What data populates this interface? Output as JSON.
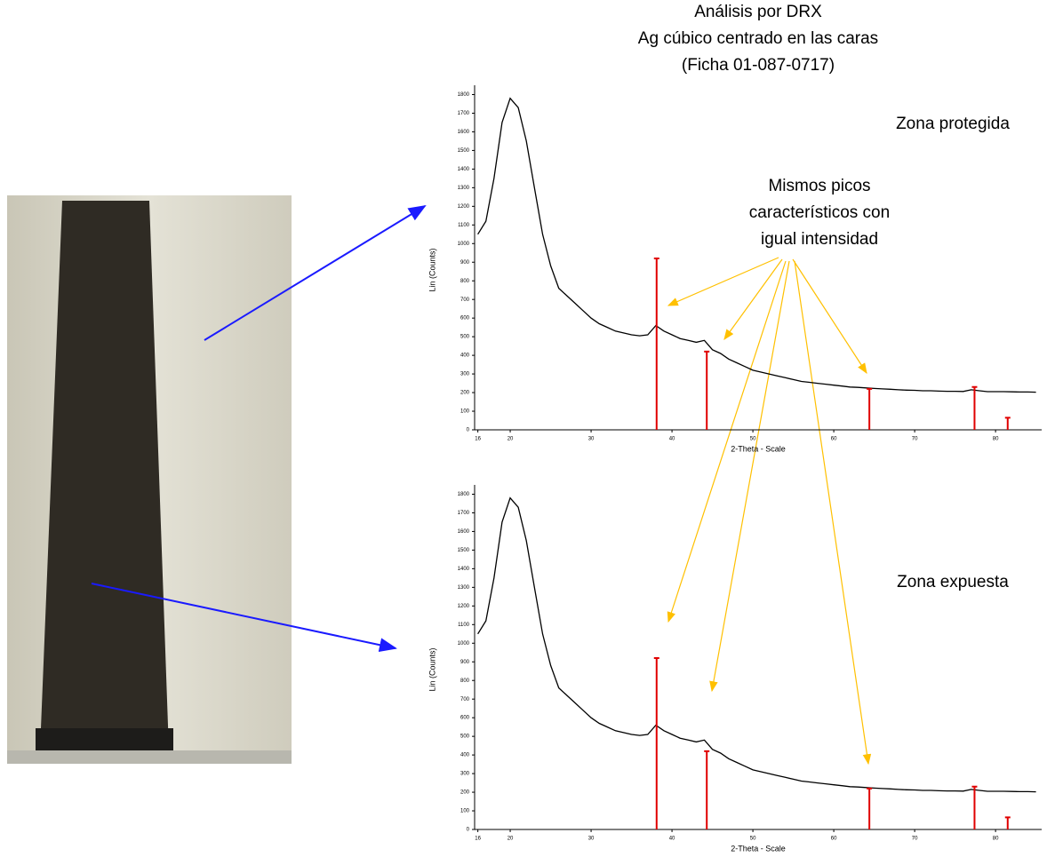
{
  "title": [
    "Análisis por DRX",
    "Ag cúbico centrado en las caras",
    "(Ficha 01-087-0717)"
  ],
  "annotation": [
    "Mismos picos",
    "característicos con",
    "igual intensidad"
  ],
  "chart_data": [
    {
      "type": "line",
      "label": "Zona protegida",
      "x_label": "2-Theta - Scale",
      "y_label": "Lin (Counts)",
      "xlim": [
        15.6,
        85.7
      ],
      "xticks": [
        16,
        20,
        30,
        40,
        50,
        60,
        70,
        80
      ],
      "ylim": [
        0,
        1850
      ],
      "yticks": [
        0,
        100,
        200,
        300,
        400,
        500,
        600,
        700,
        800,
        900,
        1000,
        1100,
        1200,
        1300,
        1400,
        1500,
        1600,
        1700,
        1800
      ],
      "x": [
        16,
        17,
        18,
        19,
        20,
        21,
        22,
        23,
        24,
        25,
        26,
        27,
        28,
        29,
        30,
        31,
        32,
        33,
        34,
        35,
        36,
        37,
        38,
        39,
        40,
        41,
        42,
        43,
        44,
        45,
        46,
        47,
        48,
        49,
        50,
        51,
        52,
        53,
        54,
        55,
        56,
        57,
        58,
        59,
        60,
        61,
        62,
        63,
        64,
        65,
        66,
        67,
        68,
        69,
        70,
        71,
        72,
        73,
        74,
        75,
        76,
        77,
        78,
        79,
        80,
        81,
        82,
        83,
        84,
        85
      ],
      "series": [
        {
          "color": "#000000",
          "values": [
            1050,
            1120,
            1350,
            1650,
            1780,
            1730,
            1550,
            1300,
            1050,
            880,
            760,
            720,
            680,
            640,
            600,
            570,
            550,
            530,
            520,
            510,
            505,
            510,
            560,
            530,
            510,
            490,
            480,
            470,
            480,
            430,
            410,
            380,
            360,
            340,
            320,
            310,
            300,
            290,
            280,
            270,
            260,
            255,
            250,
            245,
            240,
            235,
            230,
            228,
            225,
            222,
            220,
            218,
            215,
            213,
            212,
            210,
            210,
            208,
            207,
            207,
            206,
            215,
            210,
            205,
            205,
            205,
            204,
            203,
            203,
            202
          ]
        }
      ],
      "reference": {
        "color": "#e00000",
        "x": [
          38.1,
          44.3,
          64.4,
          77.4,
          81.5
        ],
        "values": [
          920,
          420,
          220,
          230,
          65
        ]
      }
    },
    {
      "type": "line",
      "label": "Zona expuesta",
      "x_label": "2-Theta - Scale",
      "y_label": "Lin (Counts)",
      "xlim": [
        15.6,
        85.7
      ],
      "xticks": [
        16,
        20,
        30,
        40,
        50,
        60,
        70,
        80
      ],
      "ylim": [
        0,
        1850
      ],
      "yticks": [
        0,
        100,
        200,
        300,
        400,
        500,
        600,
        700,
        800,
        900,
        1000,
        1100,
        1200,
        1300,
        1400,
        1500,
        1600,
        1700,
        1800
      ],
      "x": [
        16,
        17,
        18,
        19,
        20,
        21,
        22,
        23,
        24,
        25,
        26,
        27,
        28,
        29,
        30,
        31,
        32,
        33,
        34,
        35,
        36,
        37,
        38,
        39,
        40,
        41,
        42,
        43,
        44,
        45,
        46,
        47,
        48,
        49,
        50,
        51,
        52,
        53,
        54,
        55,
        56,
        57,
        58,
        59,
        60,
        61,
        62,
        63,
        64,
        65,
        66,
        67,
        68,
        69,
        70,
        71,
        72,
        73,
        74,
        75,
        76,
        77,
        78,
        79,
        80,
        81,
        82,
        83,
        84,
        85
      ],
      "series": [
        {
          "color": "#000000",
          "values": [
            1050,
            1120,
            1350,
            1650,
            1780,
            1730,
            1550,
            1300,
            1050,
            880,
            760,
            720,
            680,
            640,
            600,
            570,
            550,
            530,
            520,
            510,
            505,
            510,
            560,
            530,
            510,
            490,
            480,
            470,
            480,
            430,
            410,
            380,
            360,
            340,
            320,
            310,
            300,
            290,
            280,
            270,
            260,
            255,
            250,
            245,
            240,
            235,
            230,
            228,
            225,
            222,
            220,
            218,
            215,
            213,
            212,
            210,
            210,
            208,
            207,
            207,
            206,
            215,
            210,
            205,
            205,
            205,
            204,
            203,
            203,
            202
          ]
        }
      ],
      "reference": {
        "color": "#e00000",
        "x": [
          38.1,
          44.3,
          64.4,
          77.4,
          81.5
        ],
        "values": [
          920,
          420,
          220,
          230,
          65
        ]
      }
    }
  ]
}
